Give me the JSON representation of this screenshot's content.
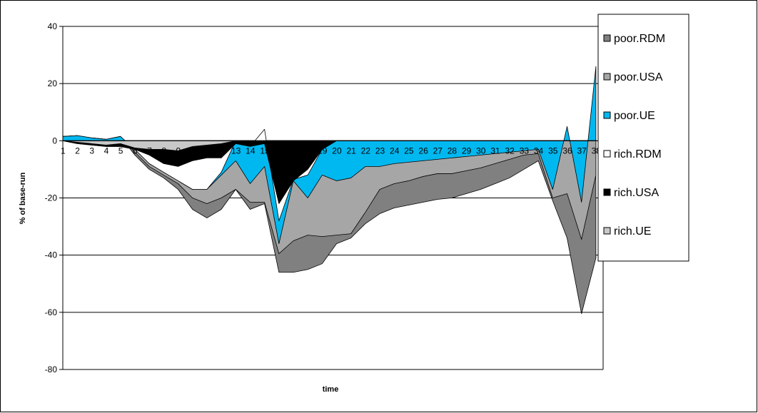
{
  "chart_data": {
    "type": "area",
    "stacking": "cumulative",
    "xlabel": "time",
    "ylabel": "% of base-run",
    "ylim": [
      -80,
      40
    ],
    "yticks": [
      40,
      20,
      0,
      -20,
      -40,
      -60,
      -80
    ],
    "x": [
      1,
      2,
      3,
      4,
      5,
      6,
      7,
      8,
      9,
      10,
      11,
      12,
      13,
      14,
      15,
      16,
      17,
      18,
      19,
      20,
      21,
      22,
      23,
      24,
      25,
      26,
      27,
      28,
      29,
      30,
      31,
      32,
      33,
      34,
      35,
      36,
      37,
      38
    ],
    "grid": "horizontal",
    "legend_position": "right",
    "series": [
      {
        "name": "poor.RDM",
        "color": "#808080",
        "cumulative": [
          1.5,
          1.8,
          1,
          0.5,
          1.5,
          -5,
          -10,
          -13,
          -17,
          -24,
          -27,
          -24,
          -17,
          -24,
          -22,
          -46,
          -46,
          -45,
          -43,
          -36,
          -34,
          -29,
          -25.5,
          -23.5,
          -22.5,
          -21.5,
          -20.5,
          -20,
          -18.5,
          -17,
          -15,
          -13,
          -10,
          -7,
          -21,
          -34,
          -60.5,
          -41
        ]
      },
      {
        "name": "poor.USA",
        "color": "#a6a6a6",
        "cumulative": [
          1.5,
          1.8,
          1,
          0.5,
          1.5,
          -4,
          -9,
          -12,
          -15,
          -20,
          -22,
          -20,
          -17,
          -21.5,
          -21.5,
          -39.5,
          -35,
          -33,
          -33.5,
          -33,
          -32.5,
          -25,
          -17,
          -15,
          -14,
          -12.5,
          -11.5,
          -11.5,
          -10.5,
          -9.5,
          -8,
          -6.5,
          -5,
          -4.5,
          -20,
          -18.5,
          -34.5,
          -12
        ]
      },
      {
        "name": "poor.UE",
        "color": "#00b8f0",
        "cumulative": [
          1.5,
          1.8,
          1,
          0.5,
          1.5,
          -3,
          -8,
          -11,
          -14,
          -17,
          -17,
          -12,
          -7,
          -15,
          -9,
          -36,
          -14,
          -20,
          -12,
          -14,
          -13,
          -9,
          -9,
          -8,
          -7.5,
          -7,
          -6.5,
          -6,
          -5.5,
          -5,
          -4.5,
          -4,
          -3.5,
          -3,
          -17,
          5,
          -21.5,
          26
        ]
      },
      {
        "name": "rich.RDM",
        "color": "#ffffff",
        "cumulative": [
          0,
          -1,
          -1.5,
          -2,
          -2,
          -3,
          -8,
          -11,
          -14,
          -17,
          -17,
          -11,
          0,
          -2,
          4,
          -28,
          -13.5,
          -12,
          -3,
          0,
          0,
          0,
          0,
          0,
          0,
          0,
          0,
          0,
          0,
          0,
          0,
          0,
          0,
          0,
          0,
          0,
          0,
          0
        ]
      },
      {
        "name": "rich.USA",
        "color": "#000000",
        "cumulative": [
          0,
          -1,
          -1.5,
          -2,
          -2,
          -3,
          -5,
          -8,
          -9,
          -7,
          -6,
          -6,
          -1,
          -2,
          -1,
          -22,
          -14,
          -10,
          -3,
          0,
          0,
          0,
          0,
          0,
          0,
          0,
          0,
          0,
          0,
          0,
          0,
          0,
          0,
          0,
          0,
          0,
          0,
          0
        ]
      },
      {
        "name": "rich.UE",
        "color": "#c8c8c8",
        "cumulative": [
          0,
          -0.5,
          -1,
          -1.5,
          -1,
          -2.5,
          -3,
          -3,
          -3.5,
          -2,
          -1.5,
          -1,
          0,
          0,
          0,
          0,
          0,
          0,
          0,
          0,
          0,
          0,
          0,
          0,
          0,
          0,
          0,
          0,
          0,
          0,
          0,
          0,
          0,
          0,
          0,
          0,
          0,
          0
        ]
      }
    ]
  }
}
